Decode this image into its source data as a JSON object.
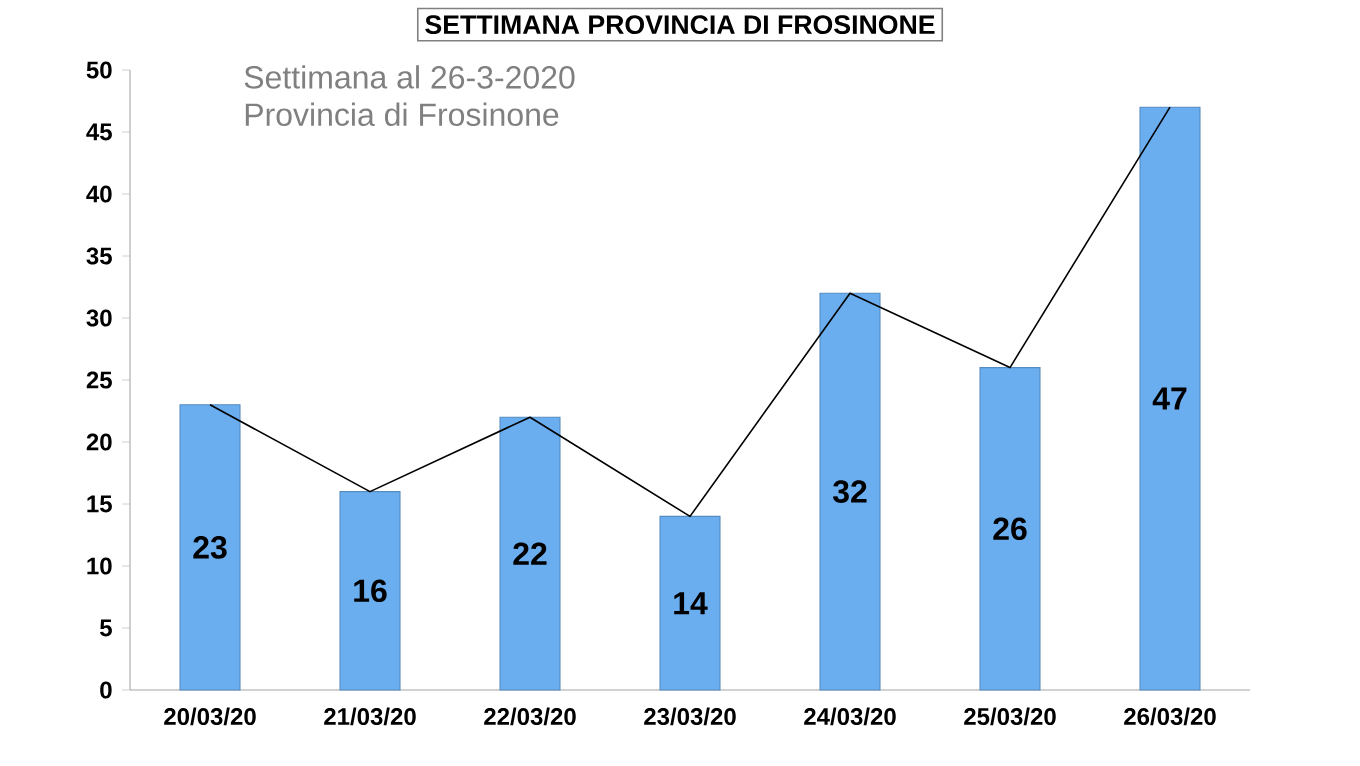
{
  "chart_data": {
    "type": "bar",
    "title": "SETTIMANA PROVINCIA DI FROSINONE",
    "subtitle": "Settimana al 26-3-2020",
    "annotations": [
      "Provincia di Frosinone"
    ],
    "categories": [
      "20/03/20",
      "21/03/20",
      "22/03/20",
      "23/03/20",
      "24/03/20",
      "25/03/20",
      "26/03/20"
    ],
    "series": [
      {
        "color": "#6aaef0",
        "values": [
          23,
          16,
          22,
          14,
          32,
          26,
          47
        ],
        "value_labels": [
          "23",
          "16",
          "22",
          "14",
          "32",
          "26",
          "47"
        ]
      },
      {
        "type": "line",
        "color": "#000000",
        "values": [
          23,
          16,
          22,
          14,
          32,
          26,
          47
        ]
      }
    ],
    "ylim": [
      0,
      50
    ],
    "yticks": [
      0,
      5,
      10,
      15,
      20,
      25,
      30,
      35,
      40,
      45,
      50
    ],
    "marker": "none"
  }
}
